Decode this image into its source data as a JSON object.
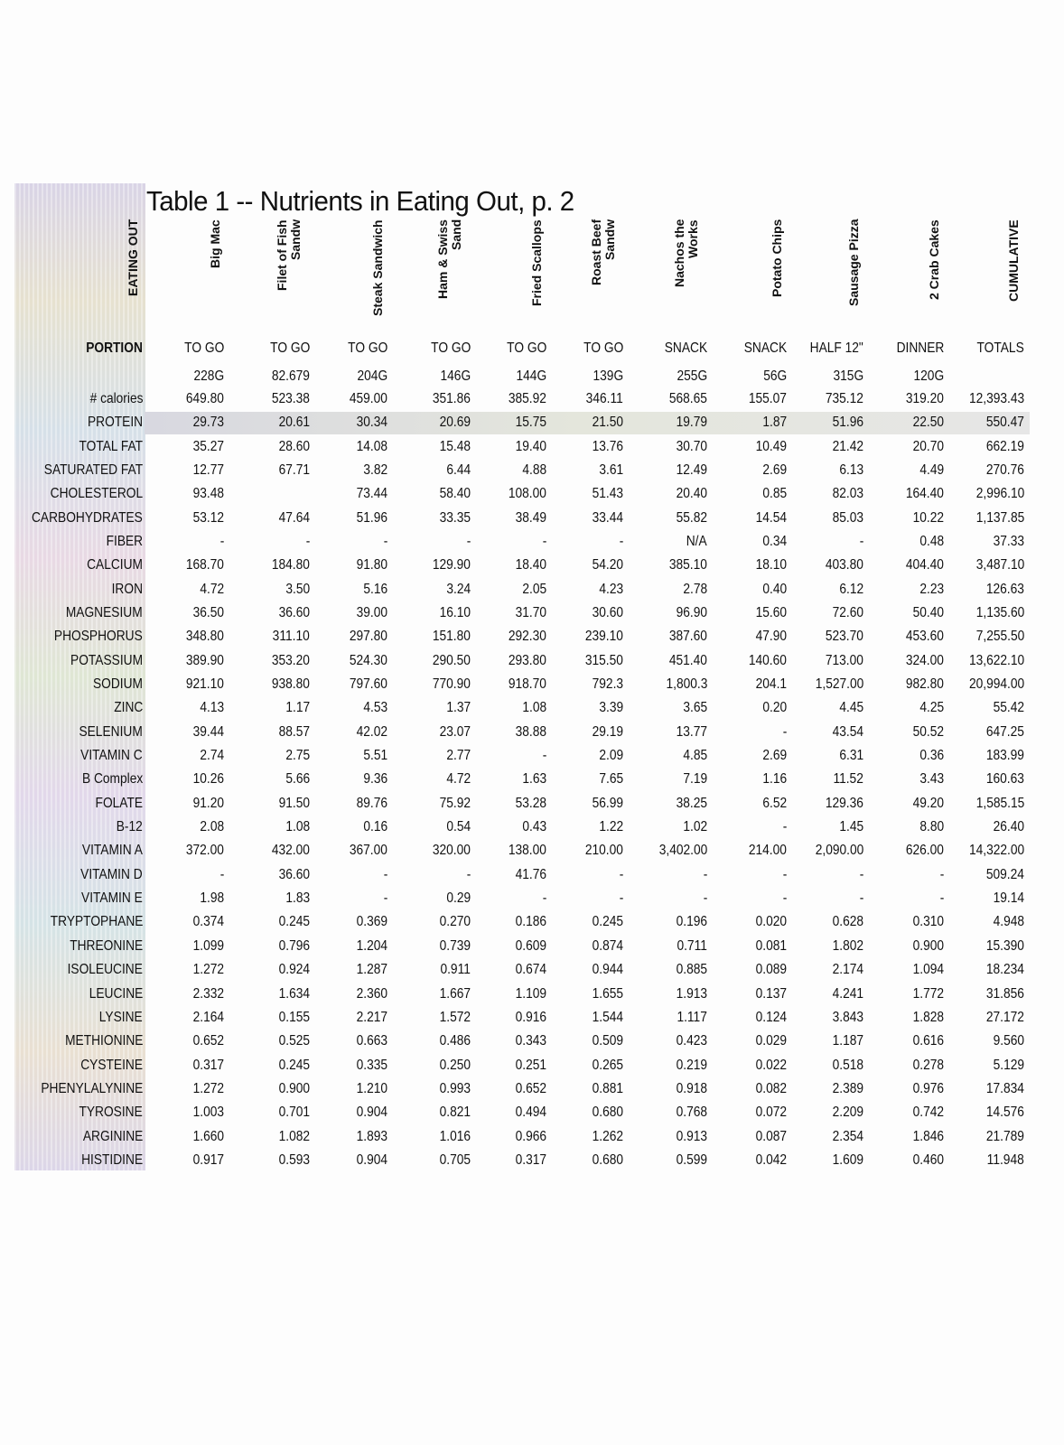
{
  "title": "Table 1 -- Nutrients in Eating Out, p. 2",
  "corner_label": "EATING OUT",
  "columns": [
    "Big Mac",
    "Filet of Fish\nSandw",
    "Steak Sandwich",
    "Ham & Swiss\nSand",
    "Fried Scallops",
    "Roast Beef\nSandw",
    "Nachos the\nWorks",
    "Potato Chips",
    "Sausage Pizza",
    "2 Crab Cakes",
    "CUMULATIVE"
  ],
  "portion_row": {
    "label": "PORTION",
    "values": [
      "TO GO",
      "TO GO",
      "TO GO",
      "TO GO",
      "TO GO",
      "TO GO",
      "SNACK",
      "SNACK",
      "HALF 12\"",
      "DINNER",
      "TOTALS"
    ]
  },
  "weight_row": {
    "label": "",
    "values": [
      "228G",
      "82.679",
      "204G",
      "146G",
      "144G",
      "139G",
      "255G",
      "56G",
      "315G",
      "120G",
      ""
    ]
  },
  "rows": [
    {
      "label": "# calories",
      "values": [
        "649.80",
        "523.38",
        "459.00",
        "351.86",
        "385.92",
        "346.11",
        "568.65",
        "155.07",
        "735.12",
        "319.20",
        "12,393.43"
      ]
    },
    {
      "label": "PROTEIN",
      "values": [
        "29.73",
        "20.61",
        "30.34",
        "20.69",
        "15.75",
        "21.50",
        "19.79",
        "1.87",
        "51.96",
        "22.50",
        "550.47"
      ]
    },
    {
      "label": "TOTAL FAT",
      "values": [
        "35.27",
        "28.60",
        "14.08",
        "15.48",
        "19.40",
        "13.76",
        "30.70",
        "10.49",
        "21.42",
        "20.70",
        "662.19"
      ]
    },
    {
      "label": "SATURATED FAT",
      "values": [
        "12.77",
        "67.71",
        "3.82",
        "6.44",
        "4.88",
        "3.61",
        "12.49",
        "2.69",
        "6.13",
        "4.49",
        "270.76"
      ]
    },
    {
      "label": "CHOLESTEROL",
      "values": [
        "93.48",
        "",
        "73.44",
        "58.40",
        "108.00",
        "51.43",
        "20.40",
        "0.85",
        "82.03",
        "164.40",
        "2,996.10"
      ]
    },
    {
      "label": "CARBOHYDRATES",
      "values": [
        "53.12",
        "47.64",
        "51.96",
        "33.35",
        "38.49",
        "33.44",
        "55.82",
        "14.54",
        "85.03",
        "10.22",
        "1,137.85"
      ]
    },
    {
      "label": "FIBER",
      "values": [
        "-",
        "-",
        "-",
        "-",
        "-",
        "-",
        "N/A",
        "0.34",
        "-",
        "0.48",
        "37.33"
      ]
    },
    {
      "label": "CALCIUM",
      "values": [
        "168.70",
        "184.80",
        "91.80",
        "129.90",
        "18.40",
        "54.20",
        "385.10",
        "18.10",
        "403.80",
        "404.40",
        "3,487.10"
      ]
    },
    {
      "label": "IRON",
      "values": [
        "4.72",
        "3.50",
        "5.16",
        "3.24",
        "2.05",
        "4.23",
        "2.78",
        "0.40",
        "6.12",
        "2.23",
        "126.63"
      ]
    },
    {
      "label": "MAGNESIUM",
      "values": [
        "36.50",
        "36.60",
        "39.00",
        "16.10",
        "31.70",
        "30.60",
        "96.90",
        "15.60",
        "72.60",
        "50.40",
        "1,135.60"
      ]
    },
    {
      "label": "PHOSPHORUS",
      "values": [
        "348.80",
        "311.10",
        "297.80",
        "151.80",
        "292.30",
        "239.10",
        "387.60",
        "47.90",
        "523.70",
        "453.60",
        "7,255.50"
      ]
    },
    {
      "label": "POTASSIUM",
      "values": [
        "389.90",
        "353.20",
        "524.30",
        "290.50",
        "293.80",
        "315.50",
        "451.40",
        "140.60",
        "713.00",
        "324.00",
        "13,622.10"
      ]
    },
    {
      "label": "SODIUM",
      "values": [
        "921.10",
        "938.80",
        "797.60",
        "770.90",
        "918.70",
        "792.3",
        "1,800.3",
        "204.1",
        "1,527.00",
        "982.80",
        "20,994.00"
      ]
    },
    {
      "label": "ZINC",
      "values": [
        "4.13",
        "1.17",
        "4.53",
        "1.37",
        "1.08",
        "3.39",
        "3.65",
        "0.20",
        "4.45",
        "4.25",
        "55.42"
      ]
    },
    {
      "label": "SELENIUM",
      "values": [
        "39.44",
        "88.57",
        "42.02",
        "23.07",
        "38.88",
        "29.19",
        "13.77",
        "-",
        "43.54",
        "50.52",
        "647.25"
      ]
    },
    {
      "label": "VITAMIN C",
      "values": [
        "2.74",
        "2.75",
        "5.51",
        "2.77",
        "-",
        "2.09",
        "4.85",
        "2.69",
        "6.31",
        "0.36",
        "183.99"
      ]
    },
    {
      "label": "B Complex",
      "values": [
        "10.26",
        "5.66",
        "9.36",
        "4.72",
        "1.63",
        "7.65",
        "7.19",
        "1.16",
        "11.52",
        "3.43",
        "160.63"
      ]
    },
    {
      "label": "FOLATE",
      "values": [
        "91.20",
        "91.50",
        "89.76",
        "75.92",
        "53.28",
        "56.99",
        "38.25",
        "6.52",
        "129.36",
        "49.20",
        "1,585.15"
      ]
    },
    {
      "label": "B-12",
      "values": [
        "2.08",
        "1.08",
        "0.16",
        "0.54",
        "0.43",
        "1.22",
        "1.02",
        "-",
        "1.45",
        "8.80",
        "26.40"
      ]
    },
    {
      "label": "VITAMIN A",
      "values": [
        "372.00",
        "432.00",
        "367.00",
        "320.00",
        "138.00",
        "210.00",
        "3,402.00",
        "214.00",
        "2,090.00",
        "626.00",
        "14,322.00"
      ]
    },
    {
      "label": "VITAMIN D",
      "values": [
        "-",
        "36.60",
        "-",
        "-",
        "41.76",
        "-",
        "-",
        "-",
        "-",
        "-",
        "509.24"
      ]
    },
    {
      "label": "VITAMIN E",
      "values": [
        "1.98",
        "1.83",
        "-",
        "0.29",
        "-",
        "-",
        "-",
        "-",
        "-",
        "-",
        "19.14"
      ]
    },
    {
      "label": "TRYPTOPHANE",
      "values": [
        "0.374",
        "0.245",
        "0.369",
        "0.270",
        "0.186",
        "0.245",
        "0.196",
        "0.020",
        "0.628",
        "0.310",
        "4.948"
      ]
    },
    {
      "label": "THREONINE",
      "values": [
        "1.099",
        "0.796",
        "1.204",
        "0.739",
        "0.609",
        "0.874",
        "0.711",
        "0.081",
        "1.802",
        "0.900",
        "15.390"
      ]
    },
    {
      "label": "ISOLEUCINE",
      "values": [
        "1.272",
        "0.924",
        "1.287",
        "0.911",
        "0.674",
        "0.944",
        "0.885",
        "0.089",
        "2.174",
        "1.094",
        "18.234"
      ]
    },
    {
      "label": "LEUCINE",
      "values": [
        "2.332",
        "1.634",
        "2.360",
        "1.667",
        "1.109",
        "1.655",
        "1.913",
        "0.137",
        "4.241",
        "1.772",
        "31.856"
      ]
    },
    {
      "label": "LYSINE",
      "values": [
        "2.164",
        "0.155",
        "2.217",
        "1.572",
        "0.916",
        "1.544",
        "1.117",
        "0.124",
        "3.843",
        "1.828",
        "27.172"
      ]
    },
    {
      "label": "METHIONINE",
      "values": [
        "0.652",
        "0.525",
        "0.663",
        "0.486",
        "0.343",
        "0.509",
        "0.423",
        "0.029",
        "1.187",
        "0.616",
        "9.560"
      ]
    },
    {
      "label": "CYSTEINE",
      "values": [
        "0.317",
        "0.245",
        "0.335",
        "0.250",
        "0.251",
        "0.265",
        "0.219",
        "0.022",
        "0.518",
        "0.278",
        "5.129"
      ]
    },
    {
      "label": "PHENYLALYNINE",
      "values": [
        "1.272",
        "0.900",
        "1.210",
        "0.993",
        "0.652",
        "0.881",
        "0.918",
        "0.082",
        "2.389",
        "0.976",
        "17.834"
      ]
    },
    {
      "label": "TYROSINE",
      "values": [
        "1.003",
        "0.701",
        "0.904",
        "0.821",
        "0.494",
        "0.680",
        "0.768",
        "0.072",
        "2.209",
        "0.742",
        "14.576"
      ]
    },
    {
      "label": "ARGININE",
      "values": [
        "1.660",
        "1.082",
        "1.893",
        "1.016",
        "0.966",
        "1.262",
        "0.913",
        "0.087",
        "2.354",
        "1.846",
        "21.789"
      ]
    },
    {
      "label": "HISTIDINE",
      "values": [
        "0.917",
        "0.593",
        "0.904",
        "0.705",
        "0.317",
        "0.680",
        "0.599",
        "0.042",
        "1.609",
        "0.460",
        "11.948"
      ]
    }
  ]
}
